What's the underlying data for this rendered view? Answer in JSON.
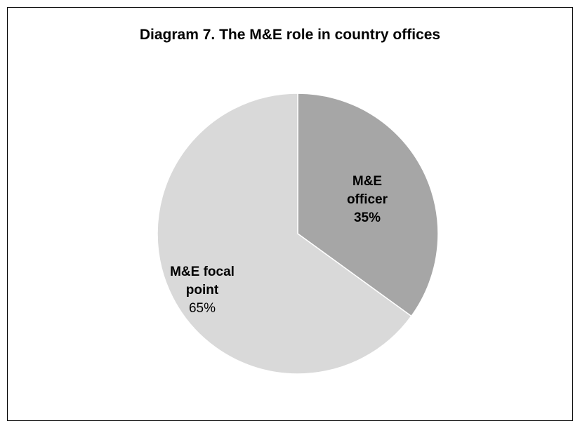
{
  "chart_data": {
    "type": "pie",
    "title": "Diagram 7. The M&E role in country offices",
    "slices": [
      {
        "name_lines": [
          "M&E",
          "officer"
        ],
        "value": 35,
        "value_label": "35%",
        "color": "#a6a6a6",
        "value_bold": true
      },
      {
        "name_lines": [
          "M&E focal",
          "point"
        ],
        "value": 65,
        "value_label": "65%",
        "color": "#d9d9d9",
        "value_bold": false
      }
    ],
    "start_angle": "12 o'clock",
    "direction": "clockwise",
    "legend": "none",
    "slice_border_color": "#ffffff"
  }
}
